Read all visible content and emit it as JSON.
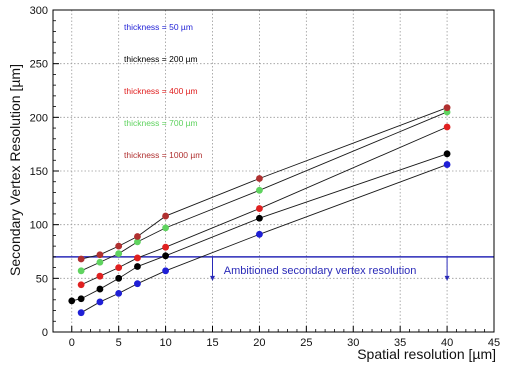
{
  "chart_data": {
    "type": "line",
    "xlabel": "Spatial resolution [µm]",
    "ylabel": "Secondary Vertex Resolution [µm]",
    "xlim": [
      -2,
      45
    ],
    "ylim": [
      0,
      300
    ],
    "x_ticks": [
      0,
      5,
      10,
      15,
      20,
      25,
      30,
      35,
      40,
      45
    ],
    "y_ticks": [
      0,
      50,
      100,
      150,
      200,
      250,
      300
    ],
    "grid": true,
    "legend_position": "top-left",
    "series": [
      {
        "name": "thickness = 50 µm",
        "color": "#1f1fd6",
        "x": [
          1,
          3,
          5,
          7,
          10,
          20,
          40
        ],
        "y": [
          18,
          28,
          36,
          45,
          57,
          91,
          156
        ]
      },
      {
        "name": "thickness = 200 µm",
        "color": "#000000",
        "x": [
          0,
          1,
          3,
          5,
          7,
          10,
          20,
          40
        ],
        "y": [
          29,
          31,
          40,
          50,
          61,
          71,
          106,
          166
        ]
      },
      {
        "name": "thickness = 400 µm",
        "color": "#e02020",
        "x": [
          1,
          3,
          5,
          7,
          10,
          20,
          40
        ],
        "y": [
          44,
          52,
          60,
          69,
          79,
          115,
          191
        ]
      },
      {
        "name": "thickness = 700 µm",
        "color": "#5fd35f",
        "x": [
          1,
          3,
          5,
          7,
          10,
          20,
          40
        ],
        "y": [
          57,
          65,
          73,
          84,
          97,
          132,
          205
        ]
      },
      {
        "name": "thickness = 1000 µm",
        "color": "#b03030",
        "x": [
          1,
          3,
          5,
          7,
          10,
          20,
          40
        ],
        "y": [
          68,
          72,
          80,
          89,
          108,
          143,
          209
        ]
      }
    ],
    "reference_line": {
      "y": 70,
      "label": "Ambitioned secondary vertex resolution",
      "color": "#2a2ab8",
      "arrow_x": [
        15,
        40
      ]
    }
  }
}
